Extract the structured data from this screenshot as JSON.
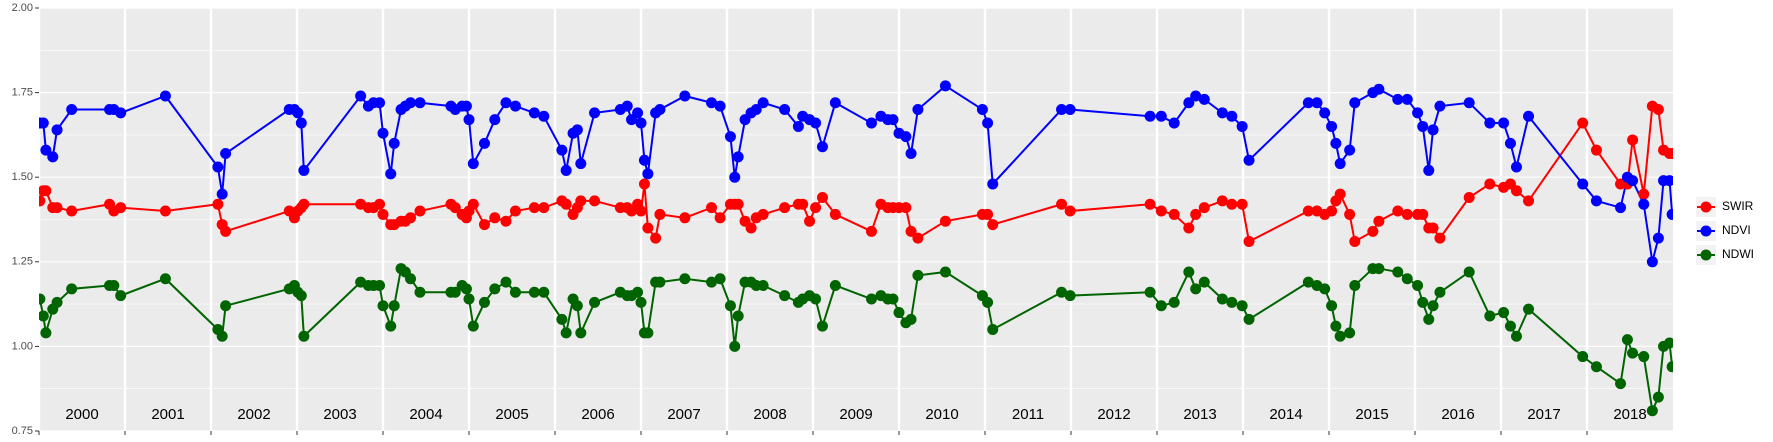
{
  "chart_data": {
    "type": "line",
    "x": [
      2000.01,
      2000.05,
      2000.08,
      2000.16,
      2000.21,
      2000.38,
      2000.82,
      2000.87,
      2000.95,
      2001.47,
      2002.08,
      2002.13,
      2002.17,
      2002.91,
      2002.97,
      2003.01,
      2003.05,
      2003.08,
      2003.74,
      2003.83,
      2003.89,
      2003.96,
      2004.0,
      2004.09,
      2004.13,
      2004.21,
      2004.26,
      2004.32,
      2004.43,
      2004.79,
      2004.84,
      2004.92,
      2004.97,
      2005.0,
      2005.05,
      2005.18,
      2005.3,
      2005.43,
      2005.54,
      2005.76,
      2005.87,
      2006.08,
      2006.13,
      2006.21,
      2006.26,
      2006.3,
      2006.46,
      2006.76,
      2006.84,
      2006.89,
      2006.96,
      2007.0,
      2007.04,
      2007.08,
      2007.17,
      2007.22,
      2007.51,
      2007.82,
      2007.92,
      2008.04,
      2008.09,
      2008.13,
      2008.21,
      2008.28,
      2008.34,
      2008.42,
      2008.67,
      2008.83,
      2008.88,
      2008.96,
      2009.03,
      2009.11,
      2009.26,
      2009.68,
      2009.79,
      2009.87,
      2009.93,
      2010.0,
      2010.08,
      2010.14,
      2010.22,
      2010.54,
      2010.97,
      2011.03,
      2011.09,
      2011.89,
      2011.99,
      2012.92,
      2013.05,
      2013.2,
      2013.37,
      2013.45,
      2013.55,
      2013.76,
      2013.87,
      2013.99,
      2014.07,
      2014.76,
      2014.86,
      2014.95,
      2015.03,
      2015.08,
      2015.13,
      2015.24,
      2015.3,
      2015.51,
      2015.58,
      2015.8,
      2015.91,
      2016.03,
      2016.09,
      2016.16,
      2016.21,
      2016.29,
      2016.63,
      2016.87,
      2017.03,
      2017.11,
      2017.18,
      2017.32,
      2017.95,
      2018.11,
      2018.39,
      2018.47,
      2018.53,
      2018.66,
      2018.76,
      2018.83,
      2018.89,
      2018.96,
      2018.99
    ],
    "series": [
      {
        "name": "SWIR",
        "color": "#ff0000",
        "values": [
          1.43,
          1.46,
          1.46,
          1.41,
          1.41,
          1.4,
          1.42,
          1.4,
          1.41,
          1.4,
          1.42,
          1.36,
          1.34,
          1.4,
          1.38,
          1.4,
          1.41,
          1.42,
          1.42,
          1.41,
          1.41,
          1.42,
          1.39,
          1.36,
          1.36,
          1.37,
          1.37,
          1.38,
          1.4,
          1.42,
          1.41,
          1.39,
          1.38,
          1.4,
          1.42,
          1.36,
          1.38,
          1.37,
          1.4,
          1.41,
          1.41,
          1.43,
          1.42,
          1.39,
          1.41,
          1.43,
          1.43,
          1.41,
          1.41,
          1.4,
          1.42,
          1.4,
          1.48,
          1.35,
          1.32,
          1.39,
          1.38,
          1.41,
          1.38,
          1.42,
          1.42,
          1.42,
          1.37,
          1.35,
          1.38,
          1.39,
          1.41,
          1.42,
          1.42,
          1.37,
          1.41,
          1.44,
          1.39,
          1.34,
          1.42,
          1.41,
          1.41,
          1.41,
          1.41,
          1.34,
          1.32,
          1.37,
          1.39,
          1.39,
          1.36,
          1.42,
          1.4,
          1.42,
          1.4,
          1.39,
          1.35,
          1.39,
          1.41,
          1.43,
          1.42,
          1.42,
          1.31,
          1.4,
          1.4,
          1.39,
          1.4,
          1.43,
          1.45,
          1.39,
          1.31,
          1.34,
          1.37,
          1.4,
          1.39,
          1.39,
          1.39,
          1.35,
          1.35,
          1.32,
          1.44,
          1.48,
          1.47,
          1.48,
          1.46,
          1.43,
          1.66,
          1.58,
          1.48,
          1.48,
          1.61,
          1.45,
          1.71,
          1.7,
          1.58,
          1.57,
          1.57
        ]
      },
      {
        "name": "NDVI",
        "color": "#0000ff",
        "values": [
          1.66,
          1.66,
          1.58,
          1.56,
          1.64,
          1.7,
          1.7,
          1.7,
          1.69,
          1.74,
          1.53,
          1.45,
          1.57,
          1.7,
          1.7,
          1.69,
          1.66,
          1.52,
          1.74,
          1.71,
          1.72,
          1.72,
          1.63,
          1.51,
          1.6,
          1.7,
          1.71,
          1.72,
          1.72,
          1.71,
          1.7,
          1.71,
          1.71,
          1.67,
          1.54,
          1.6,
          1.67,
          1.72,
          1.71,
          1.69,
          1.68,
          1.58,
          1.52,
          1.63,
          1.64,
          1.54,
          1.69,
          1.7,
          1.71,
          1.67,
          1.69,
          1.66,
          1.55,
          1.51,
          1.69,
          1.7,
          1.74,
          1.72,
          1.71,
          1.62,
          1.5,
          1.56,
          1.67,
          1.69,
          1.7,
          1.72,
          1.7,
          1.65,
          1.68,
          1.67,
          1.66,
          1.59,
          1.72,
          1.66,
          1.68,
          1.67,
          1.67,
          1.63,
          1.62,
          1.57,
          1.7,
          1.77,
          1.7,
          1.66,
          1.48,
          1.7,
          1.7,
          1.68,
          1.68,
          1.66,
          1.72,
          1.74,
          1.73,
          1.69,
          1.68,
          1.65,
          1.55,
          1.72,
          1.72,
          1.69,
          1.65,
          1.6,
          1.54,
          1.58,
          1.72,
          1.75,
          1.76,
          1.73,
          1.73,
          1.69,
          1.65,
          1.52,
          1.64,
          1.71,
          1.72,
          1.66,
          1.66,
          1.6,
          1.53,
          1.68,
          1.48,
          1.43,
          1.41,
          1.5,
          1.49,
          1.42,
          1.25,
          1.32,
          1.49,
          1.49,
          1.39
        ]
      },
      {
        "name": "NDWI",
        "color": "#006400",
        "values": [
          1.14,
          1.09,
          1.04,
          1.11,
          1.13,
          1.17,
          1.18,
          1.18,
          1.15,
          1.2,
          1.05,
          1.03,
          1.12,
          1.17,
          1.18,
          1.16,
          1.15,
          1.03,
          1.19,
          1.18,
          1.18,
          1.18,
          1.12,
          1.06,
          1.12,
          1.23,
          1.22,
          1.2,
          1.16,
          1.16,
          1.16,
          1.18,
          1.17,
          1.14,
          1.06,
          1.13,
          1.17,
          1.19,
          1.16,
          1.16,
          1.16,
          1.08,
          1.04,
          1.14,
          1.12,
          1.04,
          1.13,
          1.16,
          1.15,
          1.15,
          1.16,
          1.13,
          1.04,
          1.04,
          1.19,
          1.19,
          1.2,
          1.19,
          1.2,
          1.12,
          1.0,
          1.09,
          1.19,
          1.19,
          1.18,
          1.18,
          1.15,
          1.13,
          1.14,
          1.15,
          1.14,
          1.06,
          1.18,
          1.14,
          1.15,
          1.14,
          1.14,
          1.1,
          1.07,
          1.08,
          1.21,
          1.22,
          1.15,
          1.13,
          1.05,
          1.16,
          1.15,
          1.16,
          1.12,
          1.13,
          1.22,
          1.17,
          1.19,
          1.14,
          1.13,
          1.12,
          1.08,
          1.19,
          1.18,
          1.17,
          1.12,
          1.06,
          1.03,
          1.04,
          1.18,
          1.23,
          1.23,
          1.22,
          1.2,
          1.18,
          1.13,
          1.08,
          1.12,
          1.16,
          1.22,
          1.09,
          1.1,
          1.06,
          1.03,
          1.11,
          0.97,
          0.94,
          0.89,
          1.02,
          0.98,
          0.97,
          0.81,
          0.85,
          1.0,
          1.01,
          0.94
        ]
      }
    ],
    "xlim": [
      2000,
      2019
    ],
    "xticks": [
      2000,
      2001,
      2002,
      2003,
      2004,
      2005,
      2006,
      2007,
      2008,
      2009,
      2010,
      2011,
      2012,
      2013,
      2014,
      2015,
      2016,
      2017,
      2018
    ],
    "ylim": [
      0.75,
      2.0
    ],
    "yticks": [
      {
        "value": 0.75,
        "label": "0.75"
      },
      {
        "value": 1.0,
        "label": "1.00"
      },
      {
        "value": 1.25,
        "label": "1.25"
      },
      {
        "value": 1.5,
        "label": "1.50"
      },
      {
        "value": 1.75,
        "label": "1.75"
      },
      {
        "value": 2.0,
        "label": "2.00"
      }
    ],
    "annotations": [
      "2000",
      "2001",
      "2002",
      "2003",
      "2004",
      "2005",
      "2006",
      "2007",
      "2008",
      "2009",
      "2010",
      "2011",
      "2012",
      "2013",
      "2014",
      "2015",
      "2016",
      "2017",
      "2018"
    ],
    "grid": true,
    "legend": "right"
  }
}
